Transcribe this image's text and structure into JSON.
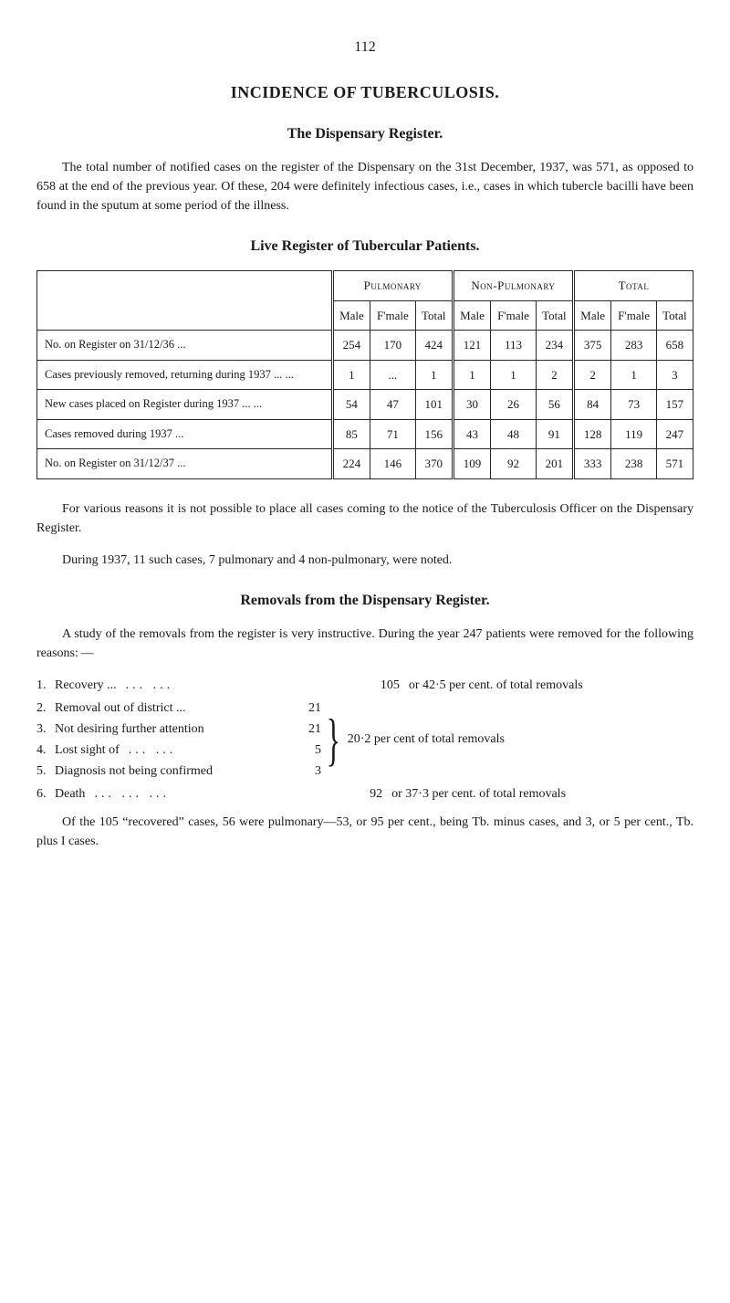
{
  "page_number": "112",
  "title": "INCIDENCE OF TUBERCULOSIS.",
  "section1_title": "The Dispensary Register.",
  "para1": "The total number of notified cases on the register of the Dispensary on the 31st December, 1937, was 571, as opposed to 658 at the end of the previous year. Of these, 204 were definitely infectious cases, i.e., cases in which tubercle bacilli have been found in the sputum at some period of the illness.",
  "table_title": "Live Register of Tubercular Patients.",
  "table": {
    "group_headers": [
      "Pulmonary",
      "Non-Pulmonary",
      "Total"
    ],
    "sub_headers": [
      "Male",
      "F'male",
      "Total",
      "Male",
      "F'male",
      "Total",
      "Male",
      "F'male",
      "Total"
    ],
    "rows": [
      {
        "label": "No. on Register on 31/12/36 ...",
        "cells": [
          "254",
          "170",
          "424",
          "121",
          "113",
          "234",
          "375",
          "283",
          "658"
        ]
      },
      {
        "label": "Cases previously removed, returning during 1937 ... ...",
        "cells": [
          "1",
          "...",
          "1",
          "1",
          "1",
          "2",
          "2",
          "1",
          "3"
        ]
      },
      {
        "label": "New cases placed on Register during 1937 ... ...",
        "cells": [
          "54",
          "47",
          "101",
          "30",
          "26",
          "56",
          "84",
          "73",
          "157"
        ]
      },
      {
        "label": "Cases removed during 1937 ...",
        "cells": [
          "85",
          "71",
          "156",
          "43",
          "48",
          "91",
          "128",
          "119",
          "247"
        ]
      },
      {
        "label": "No. on Register on 31/12/37 ...",
        "cells": [
          "224",
          "146",
          "370",
          "109",
          "92",
          "201",
          "333",
          "238",
          "571"
        ]
      }
    ]
  },
  "para2": "For various reasons it is not possible to place all cases coming to the notice of the Tuberculosis Officer on the Dispensary Register.",
  "para3": "During 1937, 11 such cases, 7 pulmonary and 4 non-pulmonary, were noted.",
  "section2_title": "Removals from the Dispensary Register.",
  "para4": "A study of the removals from the register is very instructive. During the year 247 patients were removed for the following reasons: —",
  "removals": {
    "items": [
      {
        "n": "1.",
        "label": "Recovery ...",
        "dots": "... ...",
        "val": "105",
        "desc": "or 42·5 per cent. of total removals"
      },
      {
        "n": "2.",
        "label": "Removal out of district ...",
        "dots": "",
        "val": "21"
      },
      {
        "n": "3.",
        "label": "Not desiring further attention",
        "dots": "",
        "val": "21"
      },
      {
        "n": "4.",
        "label": "Lost sight of",
        "dots": "... ...",
        "val": "5"
      },
      {
        "n": "5.",
        "label": "Diagnosis not being confirmed",
        "dots": "",
        "val": "3"
      },
      {
        "n": "6.",
        "label": "Death",
        "dots": "... ... ...",
        "val": "92",
        "desc": "or 37·3 per cent. of total removals"
      }
    ],
    "brace_desc": "20·2 per cent of total removals"
  },
  "para5": "Of the 105 “recovered” cases, 56 were pulmonary—53, or 95 per cent., being Tb. minus cases, and 3, or 5 per cent., Tb. plus I cases."
}
